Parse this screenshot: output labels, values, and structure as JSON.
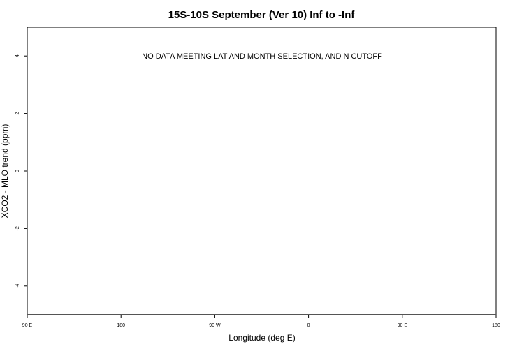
{
  "chart_data": {
    "type": "scatter",
    "title": "15S-10S September (Ver 10)   Inf to -Inf",
    "xlabel": "Longitude (deg E)",
    "ylabel": "XCO2 - MLO trend (ppm)",
    "annotation": "NO DATA MEETING LAT AND MONTH SELECTION, AND N CUTOFF",
    "xlim": [
      90,
      540
    ],
    "ylim": [
      -5,
      5
    ],
    "x_ticks": [
      90,
      180,
      270,
      360,
      450,
      540
    ],
    "x_tick_labels": [
      "90 E",
      "180",
      "90 W",
      "0",
      "90 E",
      "180"
    ],
    "y_ticks": [
      -4,
      -2,
      0,
      2,
      4
    ],
    "y_tick_labels": [
      "-4",
      "-2",
      "0",
      "2",
      "4"
    ],
    "points": [],
    "grid": false
  }
}
